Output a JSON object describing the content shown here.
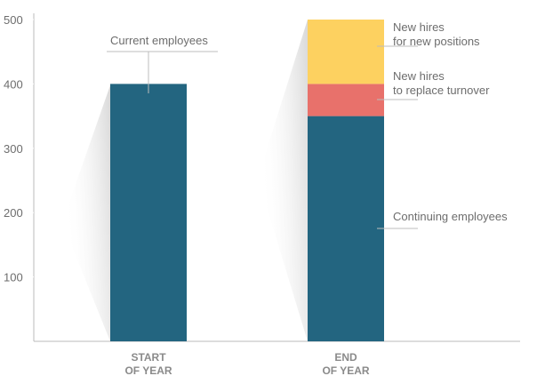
{
  "chart_data": {
    "type": "stacked_bar",
    "categories": [
      "START\nOF YEAR",
      "END\nOF YEAR"
    ],
    "series": [
      {
        "name": "Current employees",
        "color": "#236580",
        "values": [
          400,
          null
        ]
      },
      {
        "name": "Continuing  employees",
        "color": "#236580",
        "values": [
          null,
          350
        ]
      },
      {
        "name": "New hires\nto replace turnover",
        "color": "#e8716b",
        "values": [
          null,
          50
        ]
      },
      {
        "name": "New hires\nfor new positions",
        "color": "#fdd160",
        "values": [
          null,
          100
        ]
      }
    ],
    "ylim": [
      0,
      500
    ],
    "yticks": [
      100,
      200,
      300,
      400,
      500
    ]
  }
}
